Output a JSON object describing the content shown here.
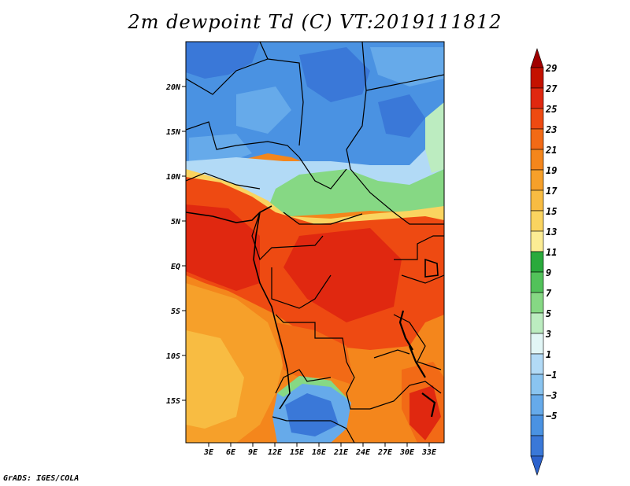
{
  "title": "2m dewpoint Td (C) VT:2019111812",
  "credit": "GrADS: IGES/COLA",
  "map": {
    "lat_ticks": [
      "20N",
      "15N",
      "10N",
      "5N",
      "EQ",
      "5S",
      "10S",
      "15S"
    ],
    "lon_ticks": [
      "3E",
      "6E",
      "9E",
      "12E",
      "15E",
      "18E",
      "21E",
      "24E",
      "27E",
      "30E",
      "33E"
    ]
  },
  "colorbar": {
    "labels": [
      "29",
      "27",
      "25",
      "23",
      "21",
      "19",
      "17",
      "15",
      "13",
      "11",
      "9",
      "7",
      "5",
      "3",
      "1",
      "−1",
      "−3",
      "−5"
    ],
    "colors": [
      "#a00000",
      "#c41200",
      "#e02810",
      "#ee4a12",
      "#f26a16",
      "#f4861c",
      "#f6a02a",
      "#f8bc42",
      "#fad460",
      "#fcec94",
      "#2aaa3c",
      "#52c25a",
      "#86d884",
      "#bcecc0",
      "#e2f6f6",
      "#b2daf6",
      "#8ac4f0",
      "#66aaea",
      "#4a92e2",
      "#3a78d8",
      "#2c62cc"
    ]
  }
}
